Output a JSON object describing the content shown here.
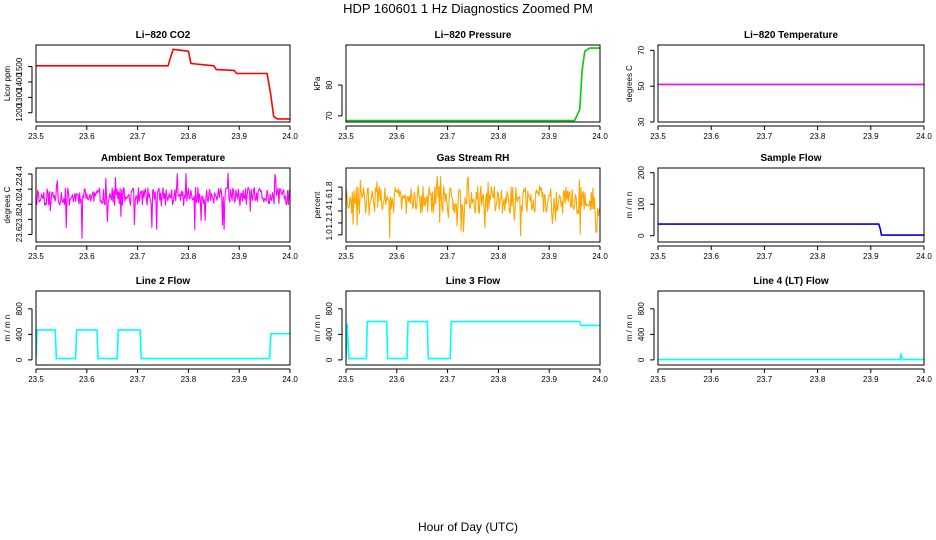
{
  "figure": {
    "title": "HDP  160601  1 Hz Diagnostics Zoomed PM",
    "xlabel": "Hour of Day (UTC)"
  },
  "chart_data": [
    {
      "type": "line",
      "title": "Li−820 CO2",
      "ylabel": "Licor ppm",
      "color": "#ff0000",
      "xlim": [
        23.5,
        24.0
      ],
      "ylim": [
        1140,
        1640
      ],
      "xticks": [
        "23.5",
        "23.6",
        "23.7",
        "23.8",
        "23.9",
        "24.0"
      ],
      "yticks": [
        "1200",
        "1300",
        "1400",
        "1500"
      ],
      "style": "step",
      "x": [
        23.5,
        23.76,
        23.765,
        23.77,
        23.8,
        23.805,
        23.85,
        23.855,
        23.89,
        23.895,
        23.955,
        23.962,
        23.968,
        23.975,
        24.0
      ],
      "y": [
        1505,
        1505,
        1560,
        1612,
        1600,
        1520,
        1505,
        1480,
        1475,
        1455,
        1455,
        1320,
        1175,
        1160,
        1160
      ]
    },
    {
      "type": "line",
      "title": "Li−820 Pressure",
      "ylabel": "kPa",
      "color": "#00cc00",
      "xlim": [
        23.5,
        24.0
      ],
      "ylim": [
        68,
        93
      ],
      "xticks": [
        "23.5",
        "23.6",
        "23.7",
        "23.8",
        "23.9",
        "24.0"
      ],
      "yticks": [
        "70",
        "80"
      ],
      "style": "step",
      "x": [
        23.5,
        23.7,
        23.9,
        23.95,
        23.96,
        23.965,
        23.97,
        23.98,
        24.0
      ],
      "y": [
        68.5,
        68.5,
        68.5,
        68.5,
        72,
        85,
        91,
        92,
        92
      ]
    },
    {
      "type": "line",
      "title": "Li−820 Temperature",
      "ylabel": "degrees C",
      "color": "#ff00ff",
      "xlim": [
        23.5,
        24.0
      ],
      "ylim": [
        30,
        73
      ],
      "xticks": [
        "23.5",
        "23.6",
        "23.7",
        "23.8",
        "23.9",
        "24.0"
      ],
      "yticks": [
        "30",
        "50",
        "70"
      ],
      "style": "step",
      "x": [
        23.5,
        24.0
      ],
      "y": [
        51,
        51
      ]
    },
    {
      "type": "line",
      "title": "Ambient Box Temperature",
      "ylabel": "degrees C",
      "color": "#ff00ff",
      "xlim": [
        23.5,
        24.0
      ],
      "ylim": [
        23.5,
        24.48
      ],
      "xticks": [
        "23.5",
        "23.6",
        "23.7",
        "23.8",
        "23.9",
        "24.0"
      ],
      "yticks": [
        "23.6",
        "23.8",
        "24.0",
        "24.2",
        "24.4"
      ],
      "style": "noise",
      "x": [
        23.5,
        24.0
      ],
      "band": [
        23.98,
        24.22
      ],
      "spike_range": [
        23.52,
        24.45
      ],
      "seed": 11
    },
    {
      "type": "line",
      "title": "Gas Stream RH",
      "ylabel": "percent",
      "color": "#ffa500",
      "xlim": [
        23.5,
        24.0
      ],
      "ylim": [
        0.88,
        2.12
      ],
      "xticks": [
        "23.5",
        "23.6",
        "23.7",
        "23.8",
        "23.9",
        "24.0"
      ],
      "yticks": [
        "1.0",
        "1.2",
        "1.4",
        "1.6",
        "1.8"
      ],
      "style": "noise",
      "x": [
        23.5,
        24.0
      ],
      "band": [
        1.35,
        1.82
      ],
      "spike_range": [
        0.95,
        2.02
      ],
      "seed": 29
    },
    {
      "type": "line",
      "title": "Sample Flow",
      "ylabel": "m / m n",
      "color": "#0000dd",
      "xlim": [
        23.5,
        24.0
      ],
      "ylim": [
        -20,
        215
      ],
      "xticks": [
        "23.5",
        "23.6",
        "23.7",
        "23.8",
        "23.9",
        "24.0"
      ],
      "yticks": [
        "0",
        "100",
        "200"
      ],
      "style": "step",
      "x": [
        23.5,
        23.915,
        23.918,
        23.92,
        24.0
      ],
      "y": [
        37,
        37,
        20,
        2,
        2
      ]
    },
    {
      "type": "line",
      "title": "Line 2 Flow",
      "ylabel": "m / m n",
      "color": "#00ffff",
      "xlim": [
        23.5,
        24.0
      ],
      "ylim": [
        -80,
        1080
      ],
      "xticks": [
        "23.5",
        "23.6",
        "23.7",
        "23.8",
        "23.9",
        "24.0"
      ],
      "yticks": [
        "0",
        "400",
        "800"
      ],
      "style": "step",
      "x": [
        23.5,
        23.502,
        23.538,
        23.54,
        23.578,
        23.58,
        23.62,
        23.622,
        23.66,
        23.662,
        23.705,
        23.707,
        23.96,
        23.962,
        24.0
      ],
      "y": [
        20,
        470,
        470,
        20,
        20,
        470,
        470,
        20,
        20,
        470,
        470,
        20,
        20,
        410,
        410
      ]
    },
    {
      "type": "line",
      "title": "Line 3 Flow",
      "ylabel": "m / m n",
      "color": "#00ffff",
      "xlim": [
        23.5,
        24.0
      ],
      "ylim": [
        -80,
        1080
      ],
      "xticks": [
        "23.5",
        "23.6",
        "23.7",
        "23.8",
        "23.9",
        "24.0"
      ],
      "yticks": [
        "0",
        "400",
        "800"
      ],
      "style": "step",
      "x": [
        23.5,
        23.502,
        23.506,
        23.54,
        23.542,
        23.58,
        23.582,
        23.62,
        23.622,
        23.66,
        23.662,
        23.705,
        23.707,
        23.96,
        23.962,
        24.0
      ],
      "y": [
        20,
        560,
        20,
        20,
        600,
        600,
        20,
        20,
        600,
        600,
        20,
        20,
        600,
        600,
        540,
        540
      ]
    },
    {
      "type": "line",
      "title": "Line 4 (LT) Flow",
      "ylabel": "m / m n",
      "color": "#00ffff",
      "xlim": [
        23.5,
        24.0
      ],
      "ylim": [
        -80,
        1080
      ],
      "xticks": [
        "23.5",
        "23.6",
        "23.7",
        "23.8",
        "23.9",
        "24.0"
      ],
      "yticks": [
        "0",
        "400",
        "800"
      ],
      "style": "step",
      "x": [
        23.5,
        23.955,
        23.957,
        23.959,
        23.962,
        24.0
      ],
      "y": [
        5,
        5,
        95,
        5,
        5,
        5
      ]
    }
  ]
}
